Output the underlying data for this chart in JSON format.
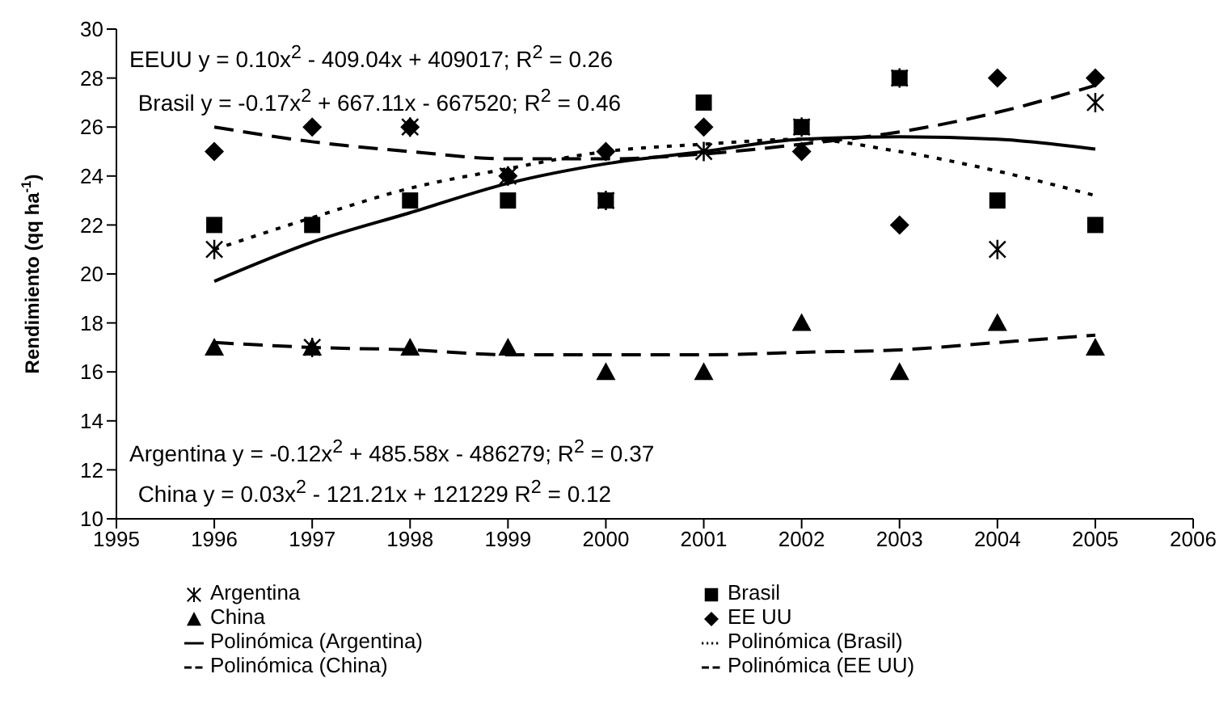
{
  "chart_data": {
    "type": "scatter",
    "ylabel": "Rendimiento (qq ha$^{-1}$)",
    "x": [
      1996,
      1997,
      1998,
      1999,
      2000,
      2001,
      2002,
      2003,
      2004,
      2005
    ],
    "xlim": [
      1995,
      2006
    ],
    "xticks": [
      1995,
      1996,
      1997,
      1998,
      1999,
      2000,
      2001,
      2002,
      2003,
      2004,
      2005,
      2006
    ],
    "ylim": [
      10,
      30
    ],
    "yticks": [
      10,
      12,
      14,
      16,
      18,
      20,
      22,
      24,
      26,
      28,
      30
    ],
    "grid": false,
    "legend": "bottom",
    "series": [
      {
        "name": "Argentina",
        "marker": "cross",
        "color": "#000000",
        "values": [
          21,
          17,
          26,
          24,
          23,
          25,
          26,
          28,
          21,
          27
        ]
      },
      {
        "name": "Brasil",
        "marker": "square",
        "color": "#000000",
        "values": [
          22,
          22,
          23,
          23,
          23,
          27,
          26,
          28,
          23,
          22
        ]
      },
      {
        "name": "China",
        "marker": "triangle",
        "color": "#000000",
        "values": [
          17,
          17,
          17,
          17,
          16,
          16,
          18,
          16,
          18,
          17
        ]
      },
      {
        "name": "EE UU",
        "marker": "diamond",
        "color": "#000000",
        "values": [
          25,
          26,
          26,
          24,
          25,
          26,
          25,
          22,
          28,
          28
        ]
      },
      {
        "name": "Polinómica (Argentina)",
        "type": "line",
        "line_style": "solid",
        "color": "#000000",
        "values": [
          19.7,
          21.3,
          22.5,
          23.7,
          24.5,
          25.0,
          25.5,
          25.6,
          25.5,
          25.1
        ]
      },
      {
        "name": "Polinómica (Brasil)",
        "type": "line",
        "line_style": "dotted",
        "color": "#000000",
        "values": [
          21.0,
          22.3,
          23.5,
          24.3,
          25.0,
          25.3,
          25.5,
          25.0,
          24.2,
          23.2
        ]
      },
      {
        "name": "Polinómica (China)",
        "type": "line",
        "line_style": "dashed",
        "color": "#000000",
        "values": [
          17.2,
          17.0,
          16.9,
          16.7,
          16.7,
          16.7,
          16.8,
          16.9,
          17.2,
          17.5
        ]
      },
      {
        "name": "Polinómica (EE UU)",
        "type": "line",
        "line_style": "dashed",
        "color": "#000000",
        "values": [
          26.0,
          25.4,
          25.0,
          24.7,
          24.7,
          24.9,
          25.3,
          25.8,
          26.6,
          27.7
        ]
      }
    ],
    "annotations": [
      "EEUU y = 0.10x$^{2}$ - 409.04x + 409017; R$^{2}$ = 0.26",
      "Brasil y = -0.17x$^{2}$ + 667.11x - 667520; R$^{2}$ = 0.46",
      "Argentina y = -0.12x$^{2}$ + 485.58x - 486279; R$^{2}$ = 0.37",
      "China y = 0.03x$^{2}$ - 121.21x + 121229 R$^{2}$ = 0.12"
    ]
  }
}
